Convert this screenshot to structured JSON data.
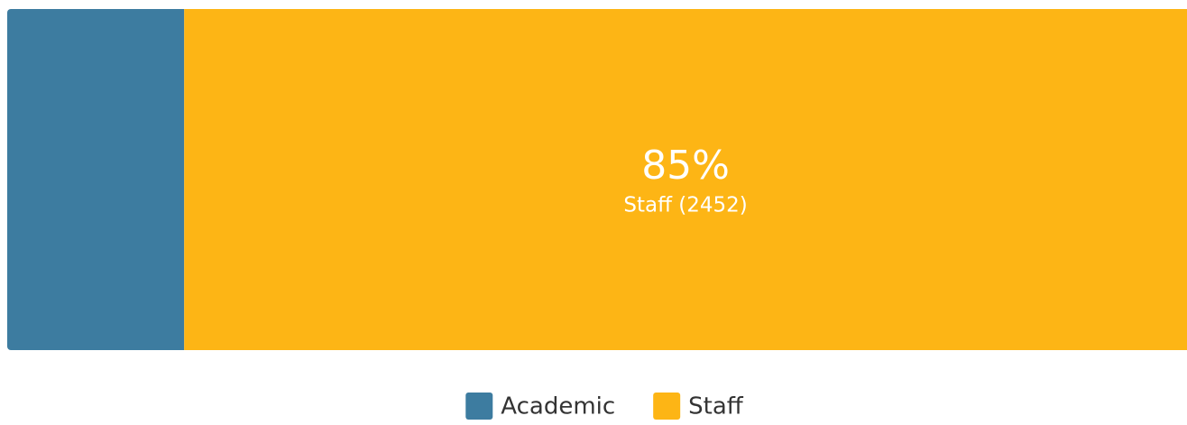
{
  "chart_data": {
    "type": "bar",
    "orientation": "horizontal",
    "stacked": true,
    "series": [
      {
        "name": "Academic",
        "color": "#3d7ca0",
        "values": [
          15
        ]
      },
      {
        "name": "Staff",
        "color": "#fdb515",
        "values": [
          85
        ],
        "value_labels": [
          "85%"
        ],
        "segment_labels": [
          "Staff (2452)"
        ]
      }
    ],
    "legend": "bottom"
  }
}
